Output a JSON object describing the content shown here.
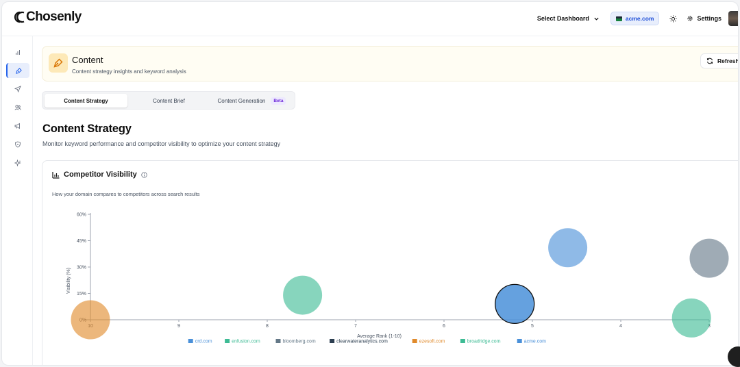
{
  "app": {
    "logo_text": "Chosenly"
  },
  "topbar": {
    "select_dashboard": "Select Dashboard",
    "domain": "acme.com",
    "settings": "Settings"
  },
  "sidebar": {
    "items": [
      {
        "name": "analytics",
        "icon": "bar-chart-icon"
      },
      {
        "name": "content",
        "icon": "pen-nib-icon",
        "active": true
      },
      {
        "name": "outreach",
        "icon": "send-icon"
      },
      {
        "name": "users",
        "icon": "users-icon"
      },
      {
        "name": "campaigns",
        "icon": "megaphone-icon"
      },
      {
        "name": "security",
        "icon": "shield-icon"
      },
      {
        "name": "ai",
        "icon": "sparkle-icon"
      }
    ]
  },
  "header": {
    "title": "Content",
    "subtitle": "Content strategy insights and keyword analysis",
    "refresh": "Refresh"
  },
  "tabs": [
    {
      "label": "Content Strategy",
      "active": true
    },
    {
      "label": "Content Brief"
    },
    {
      "label": "Content Generation",
      "badge": "Beta"
    }
  ],
  "section": {
    "title": "Content Strategy",
    "subtitle": "Monitor keyword performance and competitor visibility to optimize your content strategy"
  },
  "chart_card": {
    "title": "Competitor Visibility",
    "subtitle": "How your domain compares to competitors across search results"
  },
  "chart_data": {
    "type": "scatter",
    "xlabel": "Average Rank (1-10)",
    "ylabel": "Visibility (%)",
    "xlim": [
      10,
      3
    ],
    "ylim": [
      0,
      60
    ],
    "x_ticks": [
      "10",
      "9",
      "8",
      "7",
      "6",
      "5",
      "4",
      "3"
    ],
    "y_ticks": [
      "0%",
      "15%",
      "30%",
      "45%",
      "60%"
    ],
    "series": [
      {
        "name": "crd.com",
        "color": "#4a90d9",
        "points": [
          {
            "x": 4.6,
            "y": 41
          }
        ]
      },
      {
        "name": "enfusion.com",
        "color": "#3dbb94",
        "points": [
          {
            "x": 7.6,
            "y": 14
          },
          {
            "x": 3.2,
            "y": 1
          }
        ]
      },
      {
        "name": "bloomberg.com",
        "color": "#647887",
        "points": [
          {
            "x": 3.0,
            "y": 35
          }
        ]
      },
      {
        "name": "clearwateranalytics.com",
        "color": "#2c3e50",
        "points": []
      },
      {
        "name": "ezesoft.com",
        "color": "#e08a2c",
        "points": [
          {
            "x": 10.0,
            "y": 0
          }
        ]
      },
      {
        "name": "broadridge.com",
        "color": "#3dbb94",
        "points": []
      },
      {
        "name": "acme.com",
        "color": "#4a90d9",
        "points": [
          {
            "x": 5.2,
            "y": 9,
            "highlight": true
          }
        ]
      }
    ],
    "legend_position": "bottom"
  },
  "colors": {
    "accent": "#2563eb",
    "header_bg": "#fffdf3",
    "content_icon_bg": "#fde9b8",
    "content_icon": "#d97706"
  }
}
